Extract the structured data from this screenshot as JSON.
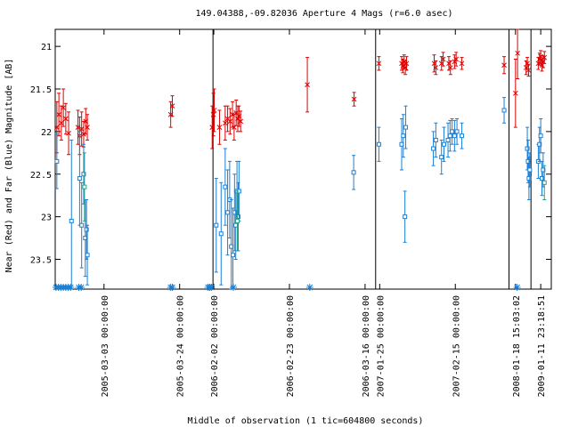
{
  "chart_data": {
    "type": "scatter",
    "title": "149.04388,-09.82036   Aperture 4 Mags (r=6.0 asec)",
    "xlabel": "Middle of observation (1 tic=604800 seconds)",
    "ylabel": "Near (Red) and Far (Blue) Magnitude [AB]",
    "y_reversed": true,
    "ylim": [
      23.85,
      20.8
    ],
    "y_ticks": [
      "21",
      "21.5",
      "22",
      "22.5",
      "23",
      "23.5"
    ],
    "x_ticks": [
      {
        "x": 6.0,
        "label": "2005-03-03 00:00:00"
      },
      {
        "x": 15.3,
        "label": "2005-03-24 00:00:00"
      },
      {
        "x": 19.5,
        "label": "2006-02-02 00:00:00"
      },
      {
        "x": 28.8,
        "label": "2006-02-23 00:00:00"
      },
      {
        "x": 38.1,
        "label": "2006-03-16 00:00:00"
      },
      {
        "x": 39.9,
        "label": "2007-01-25 00:00:00"
      },
      {
        "x": 49.2,
        "label": "2007-02-15 00:00:00"
      },
      {
        "x": 56.6,
        "label": "2008-01-18 15:03:02"
      },
      {
        "x": 59.7,
        "label": "2009-01-11 23:18:51"
      }
    ],
    "season_breaks": [
      19.4,
      39.4,
      55.8,
      58.5
    ],
    "xlim": [
      0,
      61
    ],
    "colors": {
      "near": "#dd0000",
      "far": "#1a7fd6",
      "far_alt": "#2aa08a",
      "axis": "#000000"
    },
    "series": [
      {
        "role": "near",
        "marker": "x",
        "points": [
          {
            "x": 0.2,
            "y": 21.95,
            "err": 0.3
          },
          {
            "x": 0.45,
            "y": 21.8,
            "err": 0.25
          },
          {
            "x": 0.75,
            "y": 21.9,
            "err": 0.2
          },
          {
            "x": 1.0,
            "y": 21.72,
            "err": 0.22
          },
          {
            "x": 1.3,
            "y": 21.85,
            "err": 0.18
          },
          {
            "x": 1.65,
            "y": 22.02,
            "err": 0.25
          },
          {
            "x": 2.8,
            "y": 21.95,
            "err": 0.2
          },
          {
            "x": 3.0,
            "y": 22.05,
            "err": 0.22
          },
          {
            "x": 3.25,
            "y": 21.97,
            "err": 0.2
          },
          {
            "x": 3.5,
            "y": 22.03,
            "err": 0.15
          },
          {
            "x": 3.75,
            "y": 21.88,
            "err": 0.15
          },
          {
            "x": 3.95,
            "y": 21.95,
            "err": 0.15
          },
          {
            "x": 14.2,
            "y": 21.8,
            "err": 0.15
          },
          {
            "x": 14.4,
            "y": 21.7,
            "err": 0.12
          },
          {
            "x": 19.3,
            "y": 21.95,
            "err": 0.25
          },
          {
            "x": 19.45,
            "y": 21.8,
            "err": 0.25
          },
          {
            "x": 19.55,
            "y": 21.75,
            "err": 0.25
          },
          {
            "x": 20.2,
            "y": 21.95,
            "err": 0.2
          },
          {
            "x": 20.9,
            "y": 21.9,
            "err": 0.2
          },
          {
            "x": 21.2,
            "y": 21.85,
            "err": 0.15
          },
          {
            "x": 21.5,
            "y": 21.88,
            "err": 0.15
          },
          {
            "x": 21.8,
            "y": 21.8,
            "err": 0.15
          },
          {
            "x": 22.0,
            "y": 21.95,
            "err": 0.15
          },
          {
            "x": 22.25,
            "y": 21.78,
            "err": 0.15
          },
          {
            "x": 22.45,
            "y": 21.85,
            "err": 0.15
          },
          {
            "x": 22.6,
            "y": 21.82,
            "err": 0.12
          },
          {
            "x": 22.8,
            "y": 21.88,
            "err": 0.12
          },
          {
            "x": 31.0,
            "y": 21.45,
            "err": 0.32
          },
          {
            "x": 36.75,
            "y": 21.62,
            "err": 0.08
          },
          {
            "x": 39.8,
            "y": 21.2,
            "err": 0.08
          },
          {
            "x": 42.6,
            "y": 21.2,
            "err": 0.08
          },
          {
            "x": 42.75,
            "y": 21.23,
            "err": 0.08
          },
          {
            "x": 42.9,
            "y": 21.18,
            "err": 0.08
          },
          {
            "x": 43.05,
            "y": 21.25,
            "err": 0.08
          },
          {
            "x": 43.2,
            "y": 21.2,
            "err": 0.08
          },
          {
            "x": 46.6,
            "y": 21.2,
            "err": 0.1
          },
          {
            "x": 46.8,
            "y": 21.25,
            "err": 0.08
          },
          {
            "x": 47.5,
            "y": 21.2,
            "err": 0.08
          },
          {
            "x": 47.7,
            "y": 21.15,
            "err": 0.08
          },
          {
            "x": 48.4,
            "y": 21.2,
            "err": 0.08
          },
          {
            "x": 48.6,
            "y": 21.25,
            "err": 0.08
          },
          {
            "x": 49.1,
            "y": 21.18,
            "err": 0.08
          },
          {
            "x": 49.3,
            "y": 21.15,
            "err": 0.08
          },
          {
            "x": 50.0,
            "y": 21.2,
            "err": 0.07
          },
          {
            "x": 55.2,
            "y": 21.22,
            "err": 0.1
          },
          {
            "x": 56.6,
            "y": 21.55,
            "err": 0.4
          },
          {
            "x": 56.85,
            "y": 21.08,
            "err": 0.3
          },
          {
            "x": 57.9,
            "y": 21.25,
            "err": 0.08
          },
          {
            "x": 58.05,
            "y": 21.2,
            "err": 0.07
          },
          {
            "x": 58.2,
            "y": 21.28,
            "err": 0.07
          },
          {
            "x": 59.4,
            "y": 21.2,
            "err": 0.07
          },
          {
            "x": 59.55,
            "y": 21.15,
            "err": 0.07
          },
          {
            "x": 59.7,
            "y": 21.12,
            "err": 0.07
          },
          {
            "x": 59.85,
            "y": 21.22,
            "err": 0.07
          },
          {
            "x": 60.0,
            "y": 21.18,
            "err": 0.07
          },
          {
            "x": 60.15,
            "y": 21.13,
            "err": 0.07
          }
        ]
      },
      {
        "role": "far",
        "marker": "square",
        "points": [
          {
            "x": 0.2,
            "y": 22.35,
            "err": 0.32
          },
          {
            "x": 2.0,
            "y": 23.05,
            "err": 0.95
          },
          {
            "x": 3.0,
            "y": 22.55,
            "err": 0.55
          },
          {
            "x": 3.25,
            "y": 23.1,
            "err": 0.5
          },
          {
            "x": 3.5,
            "y": 22.5,
            "err": 0.35
          },
          {
            "x": 3.7,
            "y": 23.25,
            "err": 0.45
          },
          {
            "x": 3.85,
            "y": 23.15,
            "err": 0.35
          },
          {
            "x": 3.95,
            "y": 23.45,
            "err": 0.35
          },
          {
            "x": 19.8,
            "y": 23.1,
            "err": 0.55
          },
          {
            "x": 20.4,
            "y": 23.2,
            "err": 0.6
          },
          {
            "x": 20.9,
            "y": 22.65,
            "err": 0.45
          },
          {
            "x": 21.2,
            "y": 22.95,
            "err": 0.5
          },
          {
            "x": 21.45,
            "y": 22.8,
            "err": 0.45
          },
          {
            "x": 21.65,
            "y": 23.35,
            "err": 0.55
          },
          {
            "x": 21.85,
            "y": 23.45,
            "err": 0.55
          },
          {
            "x": 22.05,
            "y": 22.95,
            "err": 0.45
          },
          {
            "x": 22.2,
            "y": 23.1,
            "err": 0.4
          },
          {
            "x": 22.35,
            "y": 22.7,
            "err": 0.35
          },
          {
            "x": 22.5,
            "y": 23.0,
            "err": 0.4
          },
          {
            "x": 22.6,
            "y": 22.7,
            "err": 0.35
          },
          {
            "x": 36.7,
            "y": 22.48,
            "err": 0.2
          },
          {
            "x": 39.8,
            "y": 22.15,
            "err": 0.2
          },
          {
            "x": 42.6,
            "y": 22.15,
            "err": 0.3
          },
          {
            "x": 42.8,
            "y": 22.05,
            "err": 0.25
          },
          {
            "x": 43.0,
            "y": 23.0,
            "err": 0.3
          },
          {
            "x": 43.1,
            "y": 21.95,
            "err": 0.25
          },
          {
            "x": 46.5,
            "y": 22.2,
            "err": 0.2
          },
          {
            "x": 46.8,
            "y": 22.1,
            "err": 0.2
          },
          {
            "x": 47.5,
            "y": 22.3,
            "err": 0.2
          },
          {
            "x": 47.8,
            "y": 22.15,
            "err": 0.2
          },
          {
            "x": 48.3,
            "y": 22.1,
            "err": 0.2
          },
          {
            "x": 48.55,
            "y": 22.05,
            "err": 0.18
          },
          {
            "x": 48.8,
            "y": 22.0,
            "err": 0.15
          },
          {
            "x": 49.1,
            "y": 22.05,
            "err": 0.18
          },
          {
            "x": 49.4,
            "y": 22.0,
            "err": 0.15
          },
          {
            "x": 50.0,
            "y": 22.05,
            "err": 0.15
          },
          {
            "x": 55.2,
            "y": 21.75,
            "err": 0.15
          },
          {
            "x": 58.05,
            "y": 22.2,
            "err": 0.25
          },
          {
            "x": 58.15,
            "y": 22.35,
            "err": 0.25
          },
          {
            "x": 58.25,
            "y": 22.55,
            "err": 0.25
          },
          {
            "x": 58.35,
            "y": 22.45,
            "err": 0.2
          },
          {
            "x": 59.4,
            "y": 22.35,
            "err": 0.2
          },
          {
            "x": 59.55,
            "y": 22.15,
            "err": 0.2
          },
          {
            "x": 59.7,
            "y": 22.05,
            "err": 0.2
          },
          {
            "x": 59.85,
            "y": 22.55,
            "err": 0.2
          },
          {
            "x": 60.0,
            "y": 22.45,
            "err": 0.2
          }
        ]
      },
      {
        "role": "far_alt",
        "marker": "square",
        "points": [
          {
            "x": 3.6,
            "y": 22.65,
            "err": 0.4
          },
          {
            "x": 22.4,
            "y": 23.05,
            "err": 0.35
          },
          {
            "x": 60.15,
            "y": 22.6,
            "err": 0.2
          }
        ]
      },
      {
        "role": "far_limits",
        "marker": "star",
        "points": [
          {
            "x": 0.1,
            "y": 23.85
          },
          {
            "x": 0.4,
            "y": 23.85
          },
          {
            "x": 0.7,
            "y": 23.85
          },
          {
            "x": 1.0,
            "y": 23.85
          },
          {
            "x": 1.3,
            "y": 23.85
          },
          {
            "x": 1.6,
            "y": 23.85
          },
          {
            "x": 1.9,
            "y": 23.85
          },
          {
            "x": 2.9,
            "y": 23.85
          },
          {
            "x": 3.2,
            "y": 23.85
          },
          {
            "x": 14.2,
            "y": 23.85
          },
          {
            "x": 14.4,
            "y": 23.85
          },
          {
            "x": 18.8,
            "y": 23.85
          },
          {
            "x": 19.0,
            "y": 23.85
          },
          {
            "x": 19.2,
            "y": 23.85
          },
          {
            "x": 21.9,
            "y": 23.85
          },
          {
            "x": 31.3,
            "y": 23.85
          },
          {
            "x": 56.8,
            "y": 23.85
          }
        ]
      }
    ]
  }
}
